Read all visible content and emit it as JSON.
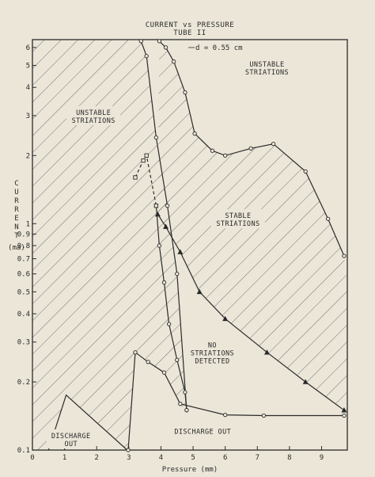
{
  "chart_data": {
    "type": "line",
    "title": "CURRENT vs PRESSURE",
    "subtitle": "TUBE II",
    "annotation": "d = 0.55 cm",
    "xlabel": "Pressure (mm)",
    "ylabel": "CURRENT (ma)",
    "y_scale": "log",
    "xlim": [
      0,
      9.8
    ],
    "ylim": [
      0.1,
      6.5
    ],
    "x_ticks": [
      {
        "v": 0,
        "label": "0"
      },
      {
        "v": 1,
        "label": "1"
      },
      {
        "v": 2,
        "label": "2"
      },
      {
        "v": 3,
        "label": "3"
      },
      {
        "v": 4,
        "label": "4"
      },
      {
        "v": 5,
        "label": "5"
      },
      {
        "v": 6,
        "label": "6"
      },
      {
        "v": 7,
        "label": "7"
      },
      {
        "v": 8,
        "label": "8"
      },
      {
        "v": 9,
        "label": "9"
      }
    ],
    "y_ticks": [
      {
        "v": 0.1,
        "label": "0.1"
      },
      {
        "v": 0.2,
        "label": "0.2"
      },
      {
        "v": 0.3,
        "label": "0.3"
      },
      {
        "v": 0.4,
        "label": "0.4"
      },
      {
        "v": 0.5,
        "label": "0.5"
      },
      {
        "v": 0.6,
        "label": "0.6"
      },
      {
        "v": 0.7,
        "label": "0.7"
      },
      {
        "v": 0.8,
        "label": "0.8"
      },
      {
        "v": 0.9,
        "label": "0.9"
      },
      {
        "v": 1,
        "label": "1"
      },
      {
        "v": 2,
        "label": "2"
      },
      {
        "v": 3,
        "label": "3"
      },
      {
        "v": 4,
        "label": "4"
      },
      {
        "v": 5,
        "label": "5"
      },
      {
        "v": 6,
        "label": "6"
      }
    ],
    "regions": [
      {
        "label": [
          "UNSTABLE",
          "STRIATIONS"
        ],
        "x": 1.9,
        "y": 3.0
      },
      {
        "label": [
          "UNSTABLE",
          "STRIATIONS"
        ],
        "x": 7.3,
        "y": 4.9
      },
      {
        "label": [
          "STABLE",
          "STRIATIONS"
        ],
        "x": 6.4,
        "y": 1.05
      },
      {
        "label": [
          "NO",
          "STRIATIONS",
          "DETECTED"
        ],
        "x": 5.6,
        "y": 0.27
      },
      {
        "label": [
          "DISCHARGE",
          "OUT"
        ],
        "x": 1.2,
        "y": 0.112
      },
      {
        "label": [
          "DISCHARGE OUT"
        ],
        "x": 5.3,
        "y": 0.122
      }
    ],
    "series": [
      {
        "marker": "none",
        "x": [
          0.5,
          1.05,
          2.95
        ],
        "y": [
          0.1,
          0.175,
          0.1
        ]
      },
      {
        "marker": "circle",
        "x": [
          2.98,
          3.2,
          3.6,
          4.1,
          4.6,
          6.0,
          7.2,
          9.7
        ],
        "y": [
          0.1,
          0.27,
          0.245,
          0.22,
          0.16,
          0.143,
          0.142,
          0.142
        ]
      },
      {
        "marker": "circle",
        "x": [
          3.38,
          3.55,
          3.85,
          4.2,
          4.5,
          4.8
        ],
        "y": [
          6.4,
          5.5,
          2.4,
          1.2,
          0.6,
          0.15
        ]
      },
      {
        "marker": "circle",
        "x": [
          3.85,
          3.95,
          4.1,
          4.25,
          4.5,
          4.75,
          4.8
        ],
        "y": [
          1.2,
          0.8,
          0.55,
          0.36,
          0.25,
          0.18,
          0.15
        ]
      },
      {
        "marker": "circle",
        "x": [
          3.95,
          4.15,
          4.4,
          4.75,
          5.05,
          5.6,
          6.0,
          6.8,
          7.5,
          8.5,
          9.2,
          9.7
        ],
        "y": [
          6.4,
          6.0,
          5.2,
          3.8,
          2.5,
          2.1,
          2.0,
          2.15,
          2.25,
          1.7,
          1.05,
          0.72
        ]
      },
      {
        "marker": "triangle",
        "x": [
          3.9,
          4.15,
          4.6,
          5.2,
          6.0,
          7.3,
          8.5,
          9.7
        ],
        "y": [
          1.1,
          0.97,
          0.75,
          0.5,
          0.38,
          0.27,
          0.2,
          0.15
        ]
      },
      {
        "marker": "square",
        "dashed": true,
        "x": [
          3.2,
          3.45,
          3.55,
          3.85
        ],
        "y": [
          1.6,
          1.9,
          2.0,
          1.2
        ]
      }
    ]
  }
}
